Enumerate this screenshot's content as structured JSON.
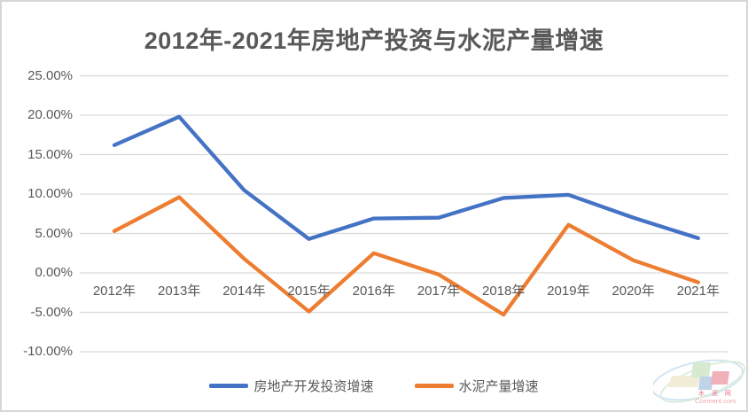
{
  "title": "2012年-2021年房地产投资与水泥产量增速",
  "chart_data": {
    "type": "line",
    "categories": [
      "2012年",
      "2013年",
      "2014年",
      "2015年",
      "2016年",
      "2017年",
      "2018年",
      "2019年",
      "2020年",
      "2021年"
    ],
    "series": [
      {
        "name": "房地产开发投资增速",
        "color": "#4472C4",
        "values": [
          16.2,
          19.8,
          10.5,
          4.3,
          6.9,
          7.0,
          9.5,
          9.9,
          7.0,
          4.4
        ]
      },
      {
        "name": "水泥产量增速",
        "color": "#ED7D31",
        "values": [
          5.3,
          9.6,
          1.8,
          -4.9,
          2.5,
          -0.2,
          -5.3,
          6.1,
          1.6,
          -1.2
        ]
      }
    ],
    "title": "2012年-2021年房地产投资与水泥产量增速",
    "xlabel": "",
    "ylabel": "",
    "ylim": [
      -10,
      25
    ],
    "ytick_values": [
      25,
      20,
      15,
      10,
      5,
      0,
      -5,
      -10
    ],
    "ytick_labels": [
      "25.00%",
      "20.00%",
      "15.00%",
      "10.00%",
      "5.00%",
      "0.00%",
      "-5.00%",
      "-10.00%"
    ],
    "grid": true,
    "legend_position": "bottom",
    "gridline_color": "#D9D9D9",
    "text_color": "#595959"
  },
  "watermark": {
    "line1": "水 泥 网",
    "line2": "Ccement.com"
  }
}
